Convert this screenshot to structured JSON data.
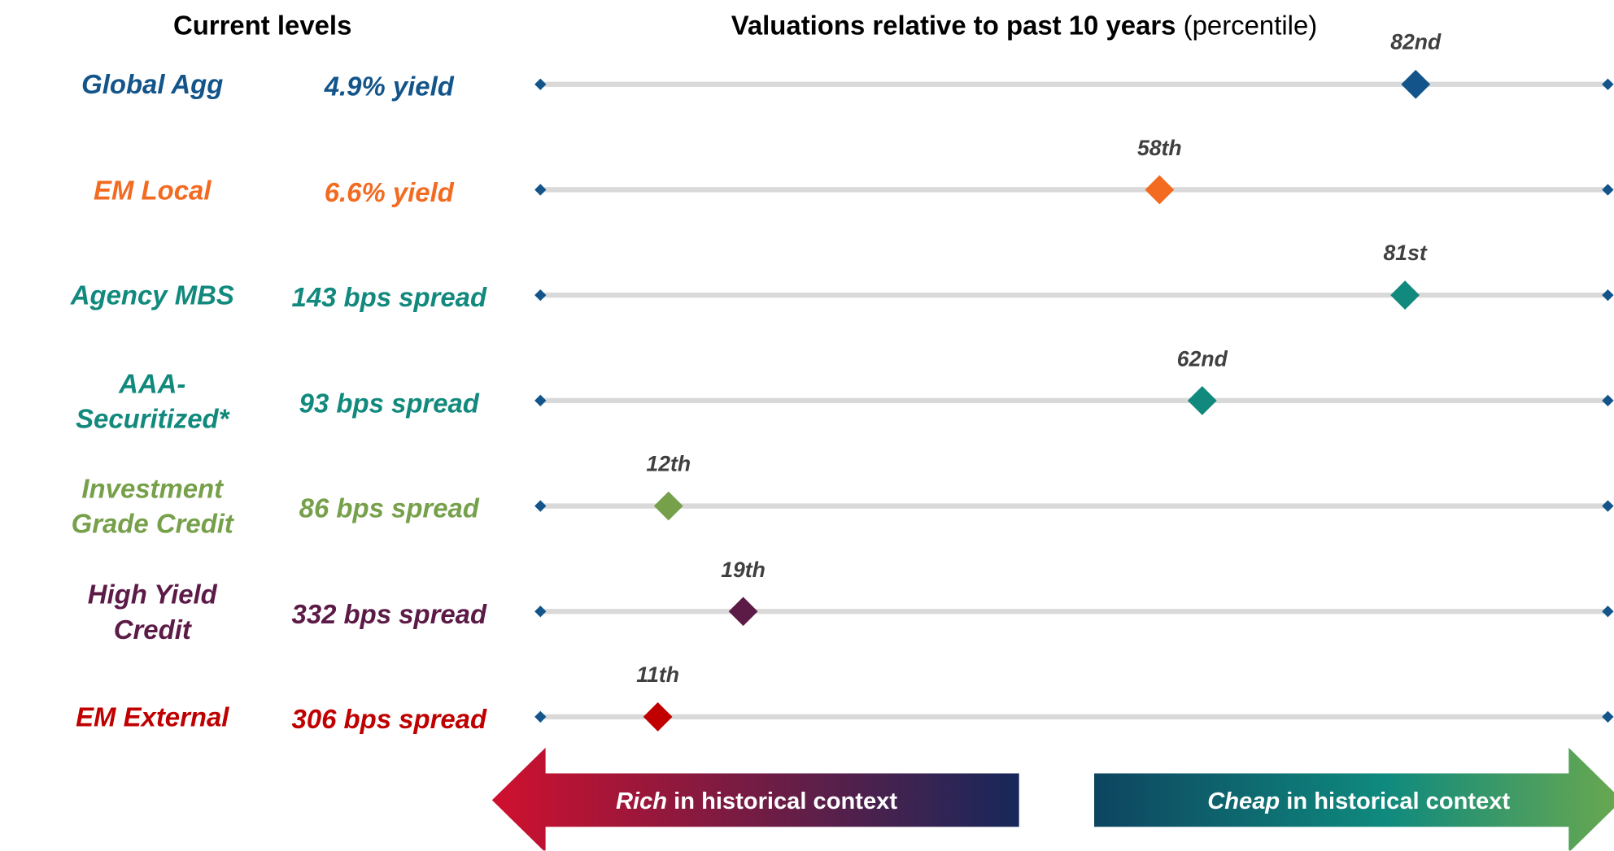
{
  "chart_data": {
    "type": "dot",
    "title": "Valuations relative to past 10 years",
    "title_note": "(percentile)",
    "column_header": "Current levels",
    "categories": [
      "Global Agg",
      "EM Local",
      "Agency MBS",
      "AAA-Securitized*",
      "Investment Grade Credit",
      "High Yield Credit",
      "EM External"
    ],
    "levels": [
      "4.9% yield",
      "6.6% yield",
      "143 bps spread",
      "93 bps spread",
      "86 bps spread",
      "332 bps spread",
      "306 bps spread"
    ],
    "values": [
      82,
      58,
      81,
      62,
      12,
      19,
      11
    ],
    "value_labels": [
      "82nd",
      "58th",
      "81st",
      "62nd",
      "12th",
      "19th",
      "11th"
    ],
    "colors": [
      "#13558a",
      "#f26b21",
      "#11897d",
      "#11897d",
      "#76a04a",
      "#5c1a47",
      "#c00000"
    ],
    "xlim": [
      0,
      100
    ],
    "arrows": {
      "rich_emphasis": "Rich",
      "rich_text": "in historical context",
      "cheap_emphasis": "Cheap",
      "cheap_text": "in historical context"
    }
  }
}
